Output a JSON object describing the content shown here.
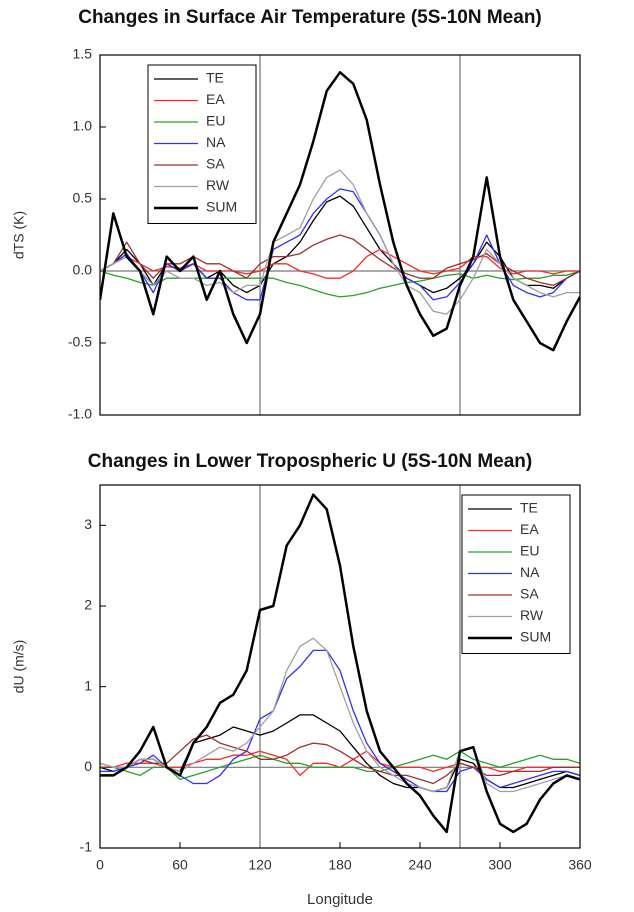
{
  "chart_data": [
    {
      "type": "line",
      "title": "Changes in Surface Air Temperature (5S-10N Mean)",
      "ylabel": "dTS (K)",
      "x": [
        0,
        10,
        20,
        30,
        40,
        50,
        60,
        70,
        80,
        90,
        100,
        110,
        120,
        130,
        140,
        150,
        160,
        170,
        180,
        190,
        200,
        210,
        220,
        230,
        240,
        250,
        260,
        270,
        280,
        290,
        300,
        310,
        320,
        330,
        340,
        350,
        360
      ],
      "xlim": [
        0,
        360
      ],
      "ylim": [
        -1,
        1.5
      ],
      "yticks": [
        {
          "value": -1,
          "label": "-1.0"
        },
        -0.5,
        {
          "value": 0,
          "label": "0.0"
        },
        0.5,
        {
          "value": 1,
          "label": "1.0"
        },
        1.5
      ],
      "vlines": [
        120,
        270
      ],
      "zero_line": true,
      "legend": "upper left",
      "series": [
        {
          "name": "TE",
          "color": "#000000",
          "values": [
            0,
            0.05,
            0.15,
            0.05,
            -0.1,
            0.05,
            0,
            0.05,
            -0.05,
            0,
            -0.1,
            -0.15,
            -0.1,
            0.05,
            0.1,
            0.2,
            0.35,
            0.48,
            0.52,
            0.45,
            0.3,
            0.15,
            0.05,
            -0.05,
            -0.1,
            -0.15,
            -0.12,
            -0.05,
            0.05,
            0.2,
            0.1,
            -0.05,
            -0.1,
            -0.1,
            -0.12,
            -0.05,
            0
          ]
        },
        {
          "name": "EA",
          "color": "#ff2a2a",
          "values": [
            0,
            0.05,
            0.1,
            0.05,
            0,
            0.03,
            0.02,
            0.05,
            0,
            0,
            0,
            -0.02,
            0,
            0.05,
            0.05,
            0,
            -0.02,
            -0.05,
            -0.05,
            0,
            0.1,
            0.15,
            0.1,
            0.05,
            0,
            -0.02,
            0,
            0.02,
            0.1,
            0.1,
            0.02,
            -0.02,
            0,
            0,
            -0.02,
            0,
            0
          ]
        },
        {
          "name": "EU",
          "color": "#2ca02c",
          "values": [
            0,
            -0.03,
            -0.05,
            -0.08,
            -0.1,
            -0.05,
            -0.05,
            -0.05,
            -0.05,
            -0.05,
            -0.05,
            -0.05,
            -0.05,
            -0.05,
            -0.08,
            -0.1,
            -0.13,
            -0.16,
            -0.18,
            -0.17,
            -0.15,
            -0.12,
            -0.1,
            -0.08,
            -0.07,
            -0.05,
            -0.03,
            -0.02,
            -0.05,
            -0.03,
            -0.05,
            -0.06,
            -0.05,
            -0.05,
            -0.03,
            -0.03,
            0
          ]
        },
        {
          "name": "NA",
          "color": "#3030ff",
          "values": [
            0,
            0.05,
            0.12,
            0,
            -0.15,
            0.05,
            0,
            0.05,
            -0.05,
            -0.05,
            -0.15,
            -0.2,
            -0.2,
            0.15,
            0.2,
            0.25,
            0.4,
            0.5,
            0.57,
            0.55,
            0.4,
            0.25,
            0.05,
            -0.05,
            -0.1,
            -0.2,
            -0.18,
            -0.08,
            0.05,
            0.25,
            0.05,
            -0.1,
            -0.15,
            -0.18,
            -0.15,
            -0.05,
            0
          ]
        },
        {
          "name": "SA",
          "color": "#a03030",
          "values": [
            0,
            0.05,
            0.2,
            0.05,
            -0.05,
            0.05,
            0.05,
            0.1,
            0.05,
            0.05,
            0,
            -0.05,
            0.05,
            0.1,
            0.1,
            0.12,
            0.18,
            0.22,
            0.25,
            0.22,
            0.15,
            0.08,
            0.02,
            -0.02,
            -0.05,
            -0.05,
            0.02,
            0.05,
            0.08,
            0.12,
            0.05,
            0,
            -0.05,
            -0.08,
            -0.1,
            -0.05,
            0
          ]
        },
        {
          "name": "RW",
          "color": "#a0a0a0",
          "values": [
            0,
            0.05,
            0.1,
            0,
            -0.1,
            0,
            -0.05,
            -0.05,
            -0.1,
            -0.08,
            -0.15,
            -0.1,
            -0.1,
            0.2,
            0.25,
            0.3,
            0.5,
            0.65,
            0.7,
            0.6,
            0.4,
            0.25,
            0.05,
            -0.1,
            -0.15,
            -0.28,
            -0.3,
            -0.2,
            -0.05,
            0.15,
            0.05,
            -0.05,
            -0.1,
            -0.15,
            -0.18,
            -0.15,
            -0.15
          ]
        },
        {
          "name": "SUM",
          "color": "#000000",
          "linewidth": 2.5,
          "values": [
            -0.2,
            0.4,
            0.1,
            0,
            -0.3,
            0.1,
            0,
            0.1,
            -0.2,
            0,
            -0.3,
            -0.5,
            -0.3,
            0.2,
            0.4,
            0.6,
            0.9,
            1.25,
            1.38,
            1.3,
            1.05,
            0.6,
            0.2,
            -0.1,
            -0.3,
            -0.45,
            -0.4,
            -0.1,
            0.1,
            0.65,
            0.1,
            -0.2,
            -0.35,
            -0.5,
            -0.55,
            -0.35,
            -0.18
          ]
        }
      ]
    },
    {
      "type": "line",
      "title": "Changes in Lower Tropospheric U (5S-10N Mean)",
      "ylabel": "dU (m/s)",
      "xlabel": "Longitude",
      "x": [
        0,
        10,
        20,
        30,
        40,
        50,
        60,
        70,
        80,
        90,
        100,
        110,
        120,
        130,
        140,
        150,
        160,
        170,
        180,
        190,
        200,
        210,
        220,
        230,
        240,
        250,
        260,
        270,
        280,
        290,
        300,
        310,
        320,
        330,
        340,
        350,
        360
      ],
      "xlim": [
        0,
        360
      ],
      "xticks": [
        0,
        60,
        120,
        180,
        240,
        300,
        360
      ],
      "ylim": [
        -1,
        3.5
      ],
      "yticks": [
        -1,
        0,
        1,
        2,
        3
      ],
      "vlines": [
        120,
        270
      ],
      "zero_line": true,
      "legend": "upper right",
      "series": [
        {
          "name": "TE",
          "color": "#000000",
          "values": [
            0,
            -0.05,
            0,
            0.1,
            0.1,
            0,
            -0.05,
            0.3,
            0.35,
            0.4,
            0.5,
            0.45,
            0.4,
            0.45,
            0.55,
            0.65,
            0.65,
            0.55,
            0.45,
            0.25,
            0.05,
            -0.1,
            -0.2,
            -0.25,
            -0.25,
            -0.3,
            -0.25,
            0.1,
            0.05,
            -0.15,
            -0.25,
            -0.25,
            -0.2,
            -0.15,
            -0.1,
            -0.05,
            -0.1
          ]
        },
        {
          "name": "EA",
          "color": "#ff2a2a",
          "values": [
            0,
            0,
            0.05,
            0.05,
            0.05,
            0,
            0,
            0.05,
            0.1,
            0.1,
            0.15,
            0.15,
            0.2,
            0.15,
            0.1,
            -0.1,
            0.05,
            0.05,
            0,
            0.1,
            0.2,
            0.05,
            0,
            0,
            0,
            -0.05,
            0,
            0.05,
            0,
            0,
            -0.05,
            -0.05,
            0,
            0,
            0,
            0,
            0
          ]
        },
        {
          "name": "EU",
          "color": "#2ca02c",
          "values": [
            0.05,
            0,
            -0.05,
            -0.1,
            0,
            0,
            -0.15,
            -0.1,
            -0.05,
            0,
            0.05,
            0.1,
            0.15,
            0.1,
            0.05,
            0.05,
            0,
            0,
            0,
            0,
            -0.05,
            -0.05,
            0,
            0.05,
            0.1,
            0.15,
            0.1,
            0.2,
            0.1,
            0.05,
            0,
            0.05,
            0.1,
            0.15,
            0.1,
            0.1,
            0.05
          ]
        },
        {
          "name": "NA",
          "color": "#3030ff",
          "values": [
            -0.05,
            -0.05,
            0,
            0.05,
            0.15,
            0,
            -0.1,
            -0.2,
            -0.2,
            -0.1,
            0.1,
            0.2,
            0.6,
            0.7,
            1.1,
            1.25,
            1.45,
            1.45,
            1.2,
            0.7,
            0.3,
            0.05,
            -0.05,
            -0.15,
            -0.25,
            -0.3,
            -0.3,
            -0.05,
            0,
            -0.15,
            -0.25,
            -0.2,
            -0.15,
            -0.1,
            -0.05,
            -0.05,
            -0.1
          ]
        },
        {
          "name": "SA",
          "color": "#a03030",
          "values": [
            0,
            0,
            0,
            0.1,
            0.05,
            0.05,
            0.2,
            0.35,
            0.4,
            0.3,
            0.25,
            0.2,
            0.1,
            0.1,
            0.15,
            0.25,
            0.3,
            0.28,
            0.2,
            0.1,
            0,
            -0.05,
            -0.1,
            -0.1,
            -0.15,
            -0.2,
            -0.1,
            0.05,
            0,
            -0.1,
            -0.1,
            -0.05,
            -0.05,
            -0.05,
            0,
            0,
            0
          ]
        },
        {
          "name": "RW",
          "color": "#a0a0a0",
          "values": [
            0.05,
            0,
            0,
            0.1,
            0.1,
            0,
            -0.05,
            0.05,
            0.15,
            0.25,
            0.2,
            0.3,
            0.5,
            0.7,
            1.2,
            1.5,
            1.6,
            1.45,
            1,
            0.55,
            0.2,
            0,
            -0.1,
            -0.2,
            -0.25,
            -0.3,
            -0.25,
            0.2,
            0.25,
            -0.2,
            -0.3,
            -0.3,
            -0.25,
            -0.2,
            -0.15,
            -0.1,
            -0.15
          ]
        },
        {
          "name": "SUM",
          "color": "#000000",
          "linewidth": 2.5,
          "values": [
            -0.1,
            -0.1,
            0,
            0.2,
            0.5,
            0,
            -0.1,
            0.3,
            0.5,
            0.8,
            0.9,
            1.2,
            1.95,
            2,
            2.75,
            3,
            3.38,
            3.2,
            2.5,
            1.5,
            0.7,
            0.2,
            0,
            -0.2,
            -0.35,
            -0.6,
            -0.8,
            0.2,
            0.25,
            -0.3,
            -0.7,
            -0.8,
            -0.7,
            -0.4,
            -0.2,
            -0.1,
            -0.15
          ]
        }
      ]
    }
  ]
}
